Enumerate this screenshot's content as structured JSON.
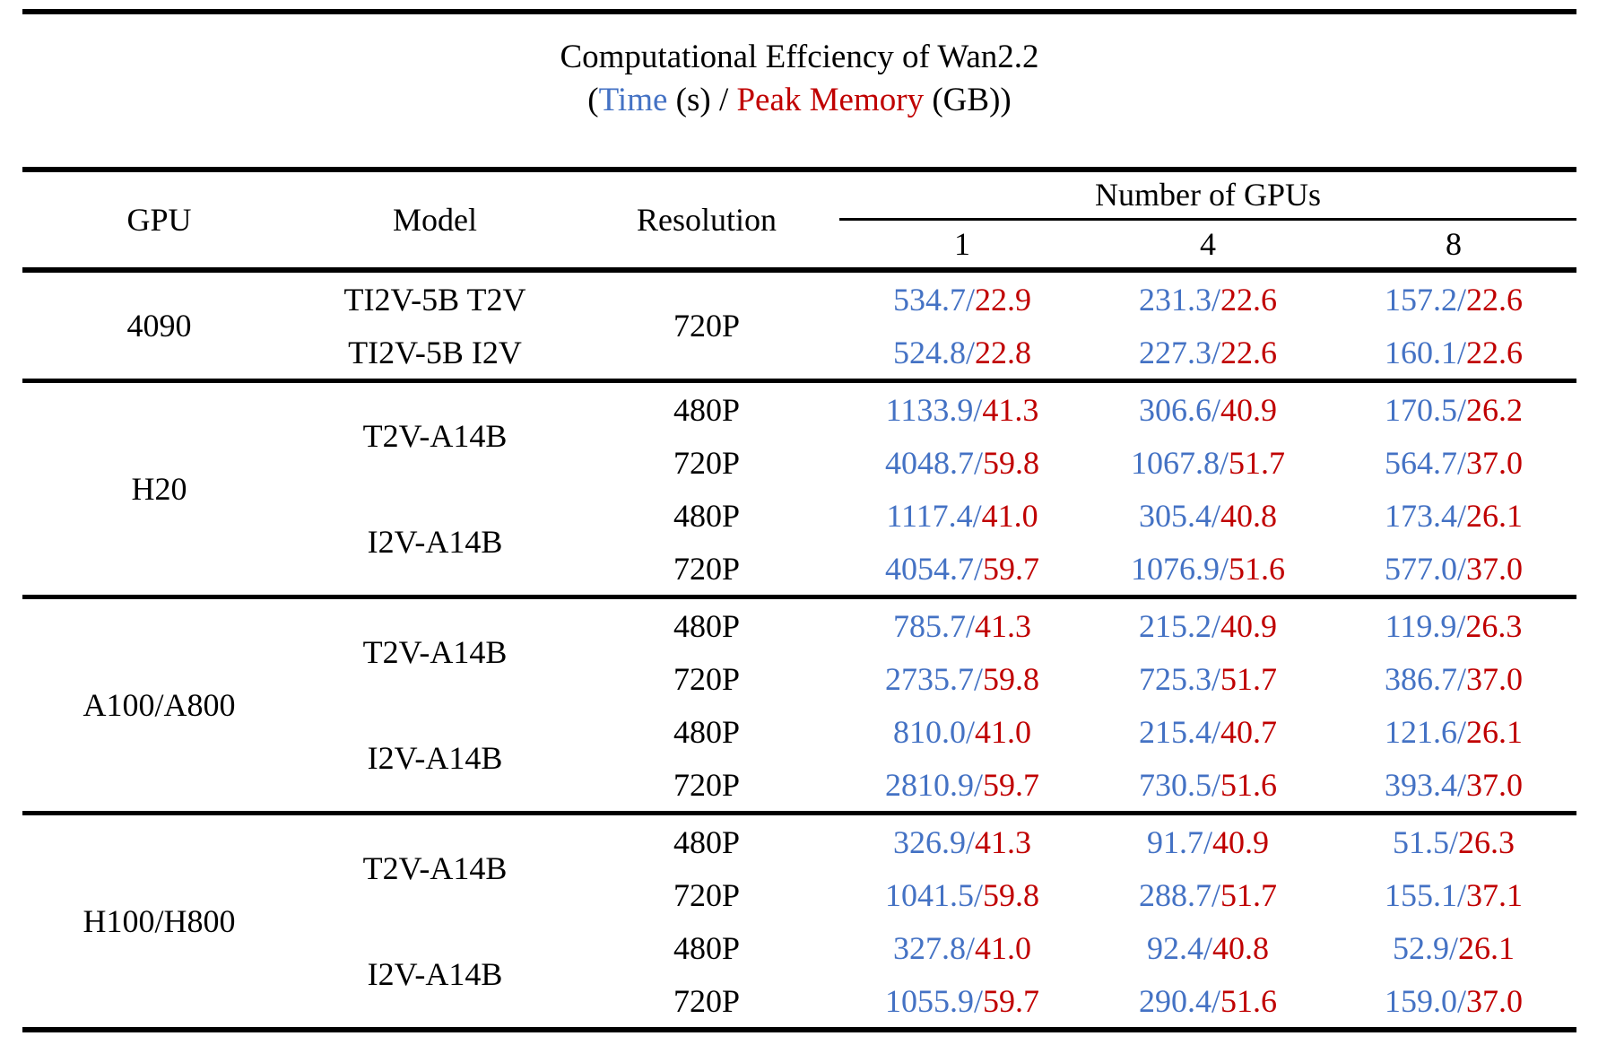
{
  "title": {
    "line1": "Computational Effciency of Wan2.2",
    "line2": {
      "prefix": "(",
      "time_label": "Time",
      "middle": " (s) / ",
      "memory_label": "Peak Memory",
      "suffix": " (GB))"
    }
  },
  "colors": {
    "time_blue": "#4472C4",
    "memory_red": "#C00000",
    "rule_black": "#000000",
    "background": "#ffffff"
  },
  "value_separator": "/",
  "header": {
    "gpu": "GPU",
    "model": "Model",
    "resolution": "Resolution",
    "group": "Number of GPUs",
    "counts": [
      "1",
      "4",
      "8"
    ]
  },
  "sections": [
    {
      "gpu": "4090",
      "rows": [
        {
          "model": "TI2V-5B T2V",
          "model_rowspan": 1,
          "resolution": "720P",
          "resolution_rowspan": 2,
          "values": [
            [
              "534.7",
              "22.9"
            ],
            [
              "231.3",
              "22.6"
            ],
            [
              "157.2",
              "22.6"
            ]
          ]
        },
        {
          "model": "TI2V-5B I2V",
          "model_rowspan": 1,
          "values": [
            [
              "524.8",
              "22.8"
            ],
            [
              "227.3",
              "22.6"
            ],
            [
              "160.1",
              "22.6"
            ]
          ]
        }
      ]
    },
    {
      "gpu": "H20",
      "rows": [
        {
          "model": "T2V-A14B",
          "model_rowspan": 2,
          "resolution": "480P",
          "resolution_rowspan": 1,
          "values": [
            [
              "1133.9",
              "41.3"
            ],
            [
              "306.6",
              "40.9"
            ],
            [
              "170.5",
              "26.2"
            ]
          ]
        },
        {
          "resolution": "720P",
          "resolution_rowspan": 1,
          "values": [
            [
              "4048.7",
              "59.8"
            ],
            [
              "1067.8",
              "51.7"
            ],
            [
              "564.7",
              "37.0"
            ]
          ]
        },
        {
          "model": "I2V-A14B",
          "model_rowspan": 2,
          "resolution": "480P",
          "resolution_rowspan": 1,
          "values": [
            [
              "1117.4",
              "41.0"
            ],
            [
              "305.4",
              "40.8"
            ],
            [
              "173.4",
              "26.1"
            ]
          ]
        },
        {
          "resolution": "720P",
          "resolution_rowspan": 1,
          "values": [
            [
              "4054.7",
              "59.7"
            ],
            [
              "1076.9",
              "51.6"
            ],
            [
              "577.0",
              "37.0"
            ]
          ]
        }
      ]
    },
    {
      "gpu": "A100/A800",
      "rows": [
        {
          "model": "T2V-A14B",
          "model_rowspan": 2,
          "resolution": "480P",
          "resolution_rowspan": 1,
          "values": [
            [
              "785.7",
              "41.3"
            ],
            [
              "215.2",
              "40.9"
            ],
            [
              "119.9",
              "26.3"
            ]
          ]
        },
        {
          "resolution": "720P",
          "resolution_rowspan": 1,
          "values": [
            [
              "2735.7",
              "59.8"
            ],
            [
              "725.3",
              "51.7"
            ],
            [
              "386.7",
              "37.0"
            ]
          ]
        },
        {
          "model": "I2V-A14B",
          "model_rowspan": 2,
          "resolution": "480P",
          "resolution_rowspan": 1,
          "values": [
            [
              "810.0",
              "41.0"
            ],
            [
              "215.4",
              "40.7"
            ],
            [
              "121.6",
              "26.1"
            ]
          ]
        },
        {
          "resolution": "720P",
          "resolution_rowspan": 1,
          "values": [
            [
              "2810.9",
              "59.7"
            ],
            [
              "730.5",
              "51.6"
            ],
            [
              "393.4",
              "37.0"
            ]
          ]
        }
      ]
    },
    {
      "gpu": "H100/H800",
      "rows": [
        {
          "model": "T2V-A14B",
          "model_rowspan": 2,
          "resolution": "480P",
          "resolution_rowspan": 1,
          "values": [
            [
              "326.9",
              "41.3"
            ],
            [
              "91.7",
              "40.9"
            ],
            [
              "51.5",
              "26.3"
            ]
          ]
        },
        {
          "resolution": "720P",
          "resolution_rowspan": 1,
          "values": [
            [
              "1041.5",
              "59.8"
            ],
            [
              "288.7",
              "51.7"
            ],
            [
              "155.1",
              "37.1"
            ]
          ]
        },
        {
          "model": "I2V-A14B",
          "model_rowspan": 2,
          "resolution": "480P",
          "resolution_rowspan": 1,
          "values": [
            [
              "327.8",
              "41.0"
            ],
            [
              "92.4",
              "40.8"
            ],
            [
              "52.9",
              "26.1"
            ]
          ]
        },
        {
          "resolution": "720P",
          "resolution_rowspan": 1,
          "values": [
            [
              "1055.9",
              "59.7"
            ],
            [
              "290.4",
              "51.6"
            ],
            [
              "159.0",
              "37.0"
            ]
          ]
        }
      ]
    }
  ]
}
